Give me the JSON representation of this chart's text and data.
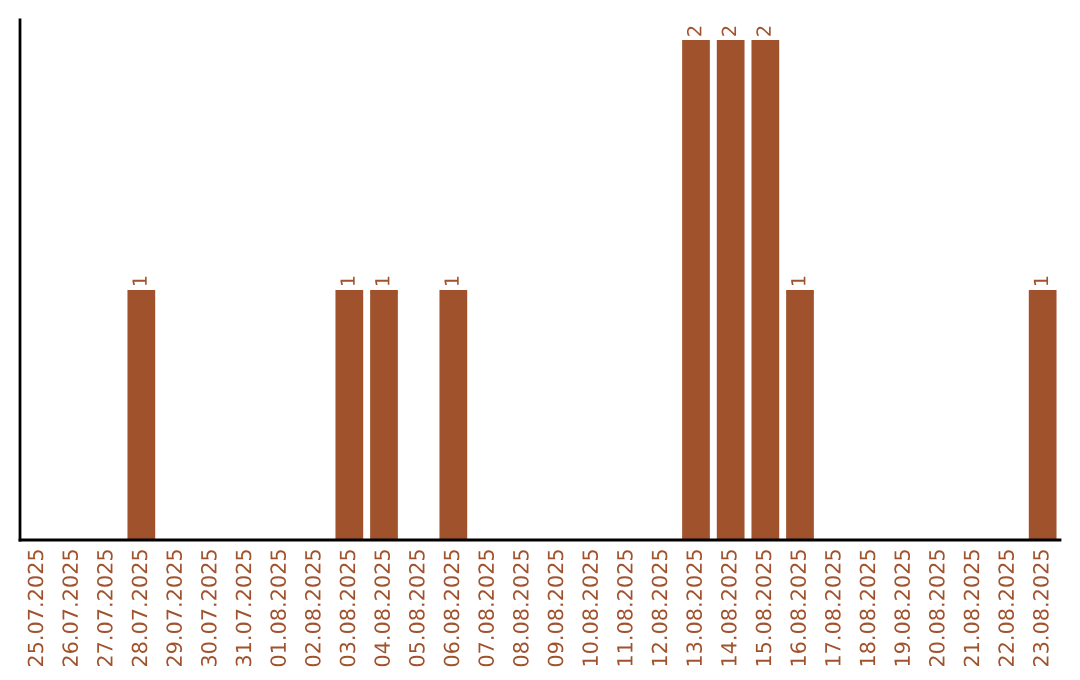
{
  "chart_data": {
    "type": "bar",
    "categories": [
      "25.07.2025",
      "26.07.2025",
      "27.07.2025",
      "28.07.2025",
      "29.07.2025",
      "30.07.2025",
      "31.07.2025",
      "01.08.2025",
      "02.08.2025",
      "03.08.2025",
      "04.08.2025",
      "05.08.2025",
      "06.08.2025",
      "07.08.2025",
      "08.08.2025",
      "09.08.2025",
      "10.08.2025",
      "11.08.2025",
      "12.08.2025",
      "13.08.2025",
      "14.08.2025",
      "15.08.2025",
      "16.08.2025",
      "17.08.2025",
      "18.08.2025",
      "19.08.2025",
      "20.08.2025",
      "21.08.2025",
      "22.08.2025",
      "23.08.2025"
    ],
    "values": [
      0,
      0,
      0,
      1,
      0,
      0,
      0,
      0,
      0,
      1,
      1,
      0,
      1,
      0,
      0,
      0,
      0,
      0,
      0,
      2,
      2,
      2,
      1,
      0,
      0,
      0,
      0,
      0,
      0,
      1
    ],
    "value_labels": [
      null,
      null,
      null,
      "1",
      null,
      null,
      null,
      null,
      null,
      "1",
      "1",
      null,
      "1",
      null,
      null,
      null,
      null,
      null,
      null,
      "2",
      "2",
      "2",
      "1",
      null,
      null,
      null,
      null,
      null,
      null,
      "1"
    ],
    "color": "#a0522d",
    "ylim": [
      0,
      2.08
    ],
    "tick_labels": "x",
    "grid": false,
    "legend": false
  }
}
